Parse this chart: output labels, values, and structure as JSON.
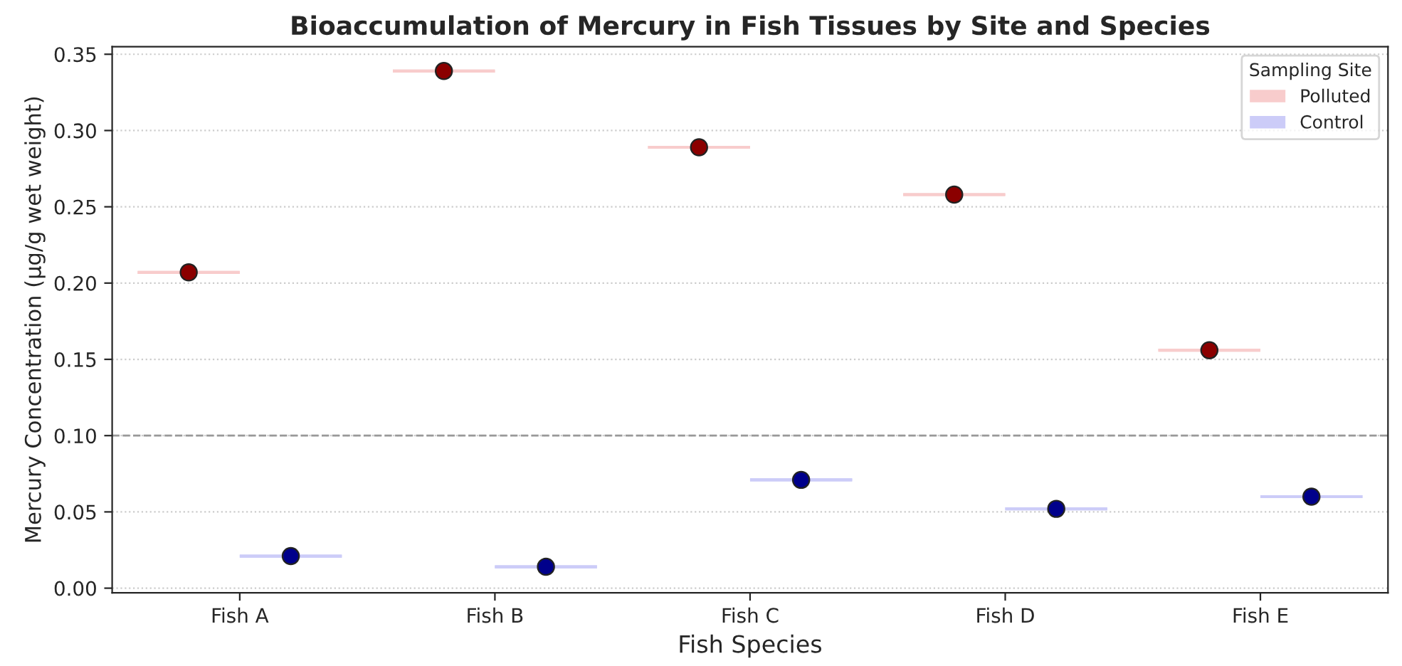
{
  "chart_data": {
    "type": "box",
    "title": "Bioaccumulation of Mercury in Fish Tissues by Site and Species",
    "xlabel": "Fish Species",
    "ylabel": "Mercury Concentration (µg/g wet weight)",
    "legend_title": "Sampling Site",
    "categories": [
      "Fish A",
      "Fish B",
      "Fish C",
      "Fish D",
      "Fish E"
    ],
    "series": [
      {
        "name": "Polluted",
        "color": "#f8cccc",
        "boxes": [
          {
            "low": 0.207,
            "q1": 0.207,
            "median": 0.207,
            "q3": 0.207,
            "high": 0.207
          },
          {
            "low": 0.339,
            "q1": 0.339,
            "median": 0.339,
            "q3": 0.339,
            "high": 0.339
          },
          {
            "low": 0.289,
            "q1": 0.289,
            "median": 0.289,
            "q3": 0.289,
            "high": 0.289
          },
          {
            "low": 0.258,
            "q1": 0.258,
            "median": 0.258,
            "q3": 0.258,
            "high": 0.258
          },
          {
            "low": 0.156,
            "q1": 0.156,
            "median": 0.156,
            "q3": 0.156,
            "high": 0.156
          }
        ]
      },
      {
        "name": "Control",
        "color": "#ccccf8",
        "boxes": [
          {
            "low": 0.021,
            "q1": 0.021,
            "median": 0.021,
            "q3": 0.021,
            "high": 0.021
          },
          {
            "low": 0.014,
            "q1": 0.014,
            "median": 0.014,
            "q3": 0.014,
            "high": 0.014
          },
          {
            "low": 0.071,
            "q1": 0.071,
            "median": 0.071,
            "q3": 0.071,
            "high": 0.071
          },
          {
            "low": 0.052,
            "q1": 0.052,
            "median": 0.052,
            "q3": 0.052,
            "high": 0.052
          },
          {
            "low": 0.06,
            "q1": 0.06,
            "median": 0.06,
            "q3": 0.06,
            "high": 0.06
          }
        ]
      },
      {
        "type": "scatter",
        "color": "#8b0000",
        "x": [
          "Fish A",
          "Fish B",
          "Fish C",
          "Fish D",
          "Fish E"
        ],
        "values": [
          0.207,
          0.339,
          0.289,
          0.258,
          0.156
        ]
      },
      {
        "type": "scatter",
        "color": "#00008b",
        "x": [
          "Fish A",
          "Fish B",
          "Fish C",
          "Fish D",
          "Fish E"
        ],
        "values": [
          0.021,
          0.014,
          0.071,
          0.052,
          0.06
        ]
      }
    ],
    "ylim": [
      -0.003,
      0.355
    ],
    "yticks": [
      {
        "value": 0,
        "label": "0.00"
      },
      0.05,
      {
        "value": 0.1,
        "label": "0.10"
      },
      0.15,
      {
        "value": 0.2,
        "label": "0.20"
      },
      0.25,
      {
        "value": 0.3,
        "label": "0.30"
      },
      0.35
    ],
    "ref_lines": [
      {
        "axis": "y",
        "value": 0.1,
        "color": "#999999",
        "line_style": "dashed"
      }
    ],
    "grid": "y",
    "legend": "top right",
    "marker": "circle"
  }
}
